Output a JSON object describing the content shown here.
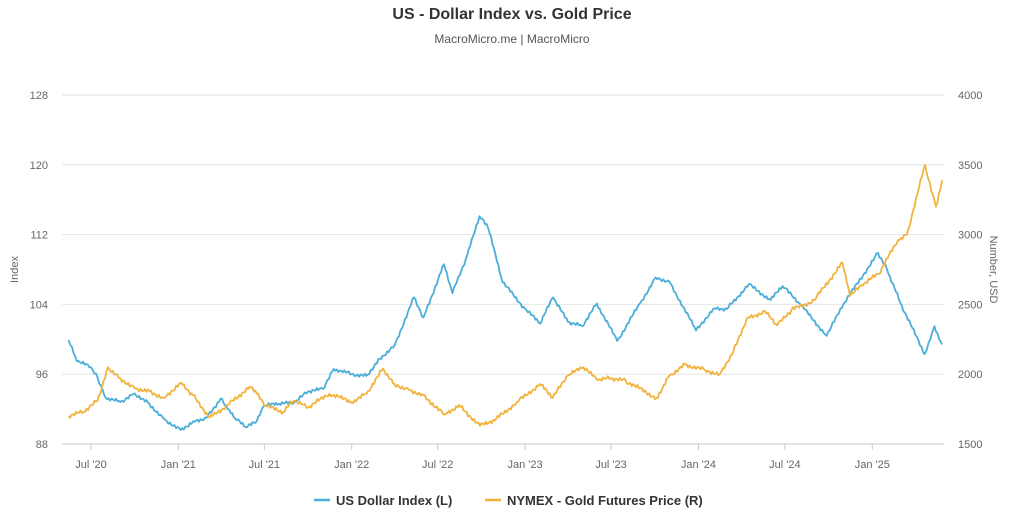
{
  "chart_data": {
    "type": "line",
    "title": "US - Dollar Index vs. Gold Price",
    "subtitle": "MacroMicro.me | MacroMicro",
    "left_axis": {
      "label": "Index",
      "range": [
        88,
        128
      ],
      "ticks": [
        88,
        96,
        104,
        112,
        120,
        128
      ]
    },
    "right_axis": {
      "label": "Number, USD",
      "range": [
        1500,
        4000
      ],
      "ticks": [
        1500,
        2000,
        2500,
        3000,
        3500,
        4000
      ]
    },
    "x_axis": {
      "range": [
        "2020-05-01",
        "2025-06-01"
      ],
      "ticks": [
        {
          "date": "2020-07-01",
          "label": "Jul '20"
        },
        {
          "date": "2021-01-01",
          "label": "Jan '21"
        },
        {
          "date": "2021-07-01",
          "label": "Jul '21"
        },
        {
          "date": "2022-01-01",
          "label": "Jan '22"
        },
        {
          "date": "2022-07-01",
          "label": "Jul '22"
        },
        {
          "date": "2023-01-01",
          "label": "Jan '23"
        },
        {
          "date": "2023-07-01",
          "label": "Jul '23"
        },
        {
          "date": "2024-01-01",
          "label": "Jan '24"
        },
        {
          "date": "2024-07-01",
          "label": "Jul '24"
        },
        {
          "date": "2025-01-01",
          "label": "Jan '25"
        }
      ]
    },
    "grid": true,
    "legend_position": "bottom",
    "series": [
      {
        "name": "US Dollar Index (L)",
        "axis": "left",
        "color": "#4aaed9",
        "points": [
          [
            "2020-05-15",
            99.9
          ],
          [
            "2020-06-01",
            97.5
          ],
          [
            "2020-07-01",
            96.8
          ],
          [
            "2020-07-15",
            95.6
          ],
          [
            "2020-08-01",
            93.3
          ],
          [
            "2020-09-01",
            92.8
          ],
          [
            "2020-10-01",
            93.8
          ],
          [
            "2020-11-01",
            92.6
          ],
          [
            "2020-12-01",
            90.9
          ],
          [
            "2021-01-06",
            89.6
          ],
          [
            "2021-02-01",
            90.6
          ],
          [
            "2021-03-01",
            91.0
          ],
          [
            "2021-03-31",
            93.2
          ],
          [
            "2021-04-15",
            92.0
          ],
          [
            "2021-05-01",
            90.9
          ],
          [
            "2021-05-25",
            89.9
          ],
          [
            "2021-06-15",
            90.6
          ],
          [
            "2021-07-01",
            92.4
          ],
          [
            "2021-08-01",
            92.6
          ],
          [
            "2021-09-01",
            92.7
          ],
          [
            "2021-10-01",
            94.0
          ],
          [
            "2021-11-01",
            94.3
          ],
          [
            "2021-11-24",
            96.6
          ],
          [
            "2022-01-01",
            96.0
          ],
          [
            "2022-02-01",
            95.8
          ],
          [
            "2022-03-01",
            97.8
          ],
          [
            "2022-04-01",
            99.3
          ],
          [
            "2022-05-12",
            104.8
          ],
          [
            "2022-06-01",
            102.5
          ],
          [
            "2022-07-14",
            108.6
          ],
          [
            "2022-08-01",
            105.3
          ],
          [
            "2022-09-01",
            109.6
          ],
          [
            "2022-09-27",
            114.1
          ],
          [
            "2022-10-15",
            112.8
          ],
          [
            "2022-11-15",
            106.5
          ],
          [
            "2023-01-01",
            103.5
          ],
          [
            "2023-02-01",
            101.8
          ],
          [
            "2023-03-01",
            104.8
          ],
          [
            "2023-04-01",
            102.0
          ],
          [
            "2023-05-01",
            101.5
          ],
          [
            "2023-06-01",
            104.1
          ],
          [
            "2023-07-14",
            99.8
          ],
          [
            "2023-09-01",
            104.2
          ],
          [
            "2023-10-03",
            107.1
          ],
          [
            "2023-11-01",
            106.6
          ],
          [
            "2023-12-27",
            101.0
          ],
          [
            "2024-02-01",
            103.5
          ],
          [
            "2024-03-01",
            103.5
          ],
          [
            "2024-04-16",
            106.3
          ],
          [
            "2024-06-01",
            104.5
          ],
          [
            "2024-06-26",
            106.1
          ],
          [
            "2024-08-01",
            104.1
          ],
          [
            "2024-09-27",
            100.4
          ],
          [
            "2024-11-01",
            104.0
          ],
          [
            "2025-01-13",
            109.9
          ],
          [
            "2025-02-01",
            108.0
          ],
          [
            "2025-03-01",
            104.2
          ],
          [
            "2025-04-21",
            98.3
          ],
          [
            "2025-05-12",
            101.5
          ],
          [
            "2025-05-28",
            99.4
          ]
        ]
      },
      {
        "name": "NYMEX - Gold Futures Price (R)",
        "axis": "right",
        "color": "#f2b33d",
        "points": [
          [
            "2020-05-15",
            1700
          ],
          [
            "2020-06-15",
            1730
          ],
          [
            "2020-07-15",
            1810
          ],
          [
            "2020-08-06",
            2050
          ],
          [
            "2020-09-01",
            1970
          ],
          [
            "2020-10-01",
            1900
          ],
          [
            "2020-11-01",
            1880
          ],
          [
            "2020-12-01",
            1830
          ],
          [
            "2021-01-06",
            1940
          ],
          [
            "2021-02-01",
            1850
          ],
          [
            "2021-03-08",
            1690
          ],
          [
            "2021-04-15",
            1780
          ],
          [
            "2021-05-31",
            1910
          ],
          [
            "2021-06-15",
            1860
          ],
          [
            "2021-07-01",
            1775
          ],
          [
            "2021-08-10",
            1730
          ],
          [
            "2021-09-01",
            1810
          ],
          [
            "2021-10-01",
            1760
          ],
          [
            "2021-11-15",
            1860
          ],
          [
            "2022-01-01",
            1800
          ],
          [
            "2022-02-01",
            1860
          ],
          [
            "2022-03-08",
            2040
          ],
          [
            "2022-04-01",
            1930
          ],
          [
            "2022-05-01",
            1890
          ],
          [
            "2022-06-01",
            1850
          ],
          [
            "2022-07-15",
            1710
          ],
          [
            "2022-08-15",
            1780
          ],
          [
            "2022-09-28",
            1630
          ],
          [
            "2022-11-01",
            1680
          ],
          [
            "2022-12-15",
            1800
          ],
          [
            "2023-02-01",
            1930
          ],
          [
            "2023-02-28",
            1830
          ],
          [
            "2023-04-01",
            1990
          ],
          [
            "2023-05-04",
            2050
          ],
          [
            "2023-06-01",
            1960
          ],
          [
            "2023-07-01",
            1970
          ],
          [
            "2023-08-01",
            1950
          ],
          [
            "2023-10-05",
            1830
          ],
          [
            "2023-11-01",
            1990
          ],
          [
            "2023-12-04",
            2070
          ],
          [
            "2024-01-15",
            2030
          ],
          [
            "2024-02-15",
            2000
          ],
          [
            "2024-03-15",
            2170
          ],
          [
            "2024-04-12",
            2400
          ],
          [
            "2024-05-20",
            2450
          ],
          [
            "2024-06-15",
            2350
          ],
          [
            "2024-07-15",
            2460
          ],
          [
            "2024-09-01",
            2530
          ],
          [
            "2024-10-30",
            2800
          ],
          [
            "2024-11-15",
            2560
          ],
          [
            "2024-12-15",
            2650
          ],
          [
            "2025-01-15",
            2720
          ],
          [
            "2025-02-24",
            2960
          ],
          [
            "2025-03-15",
            3000
          ],
          [
            "2025-04-22",
            3500
          ],
          [
            "2025-05-15",
            3200
          ],
          [
            "2025-05-28",
            3390
          ]
        ]
      }
    ]
  }
}
